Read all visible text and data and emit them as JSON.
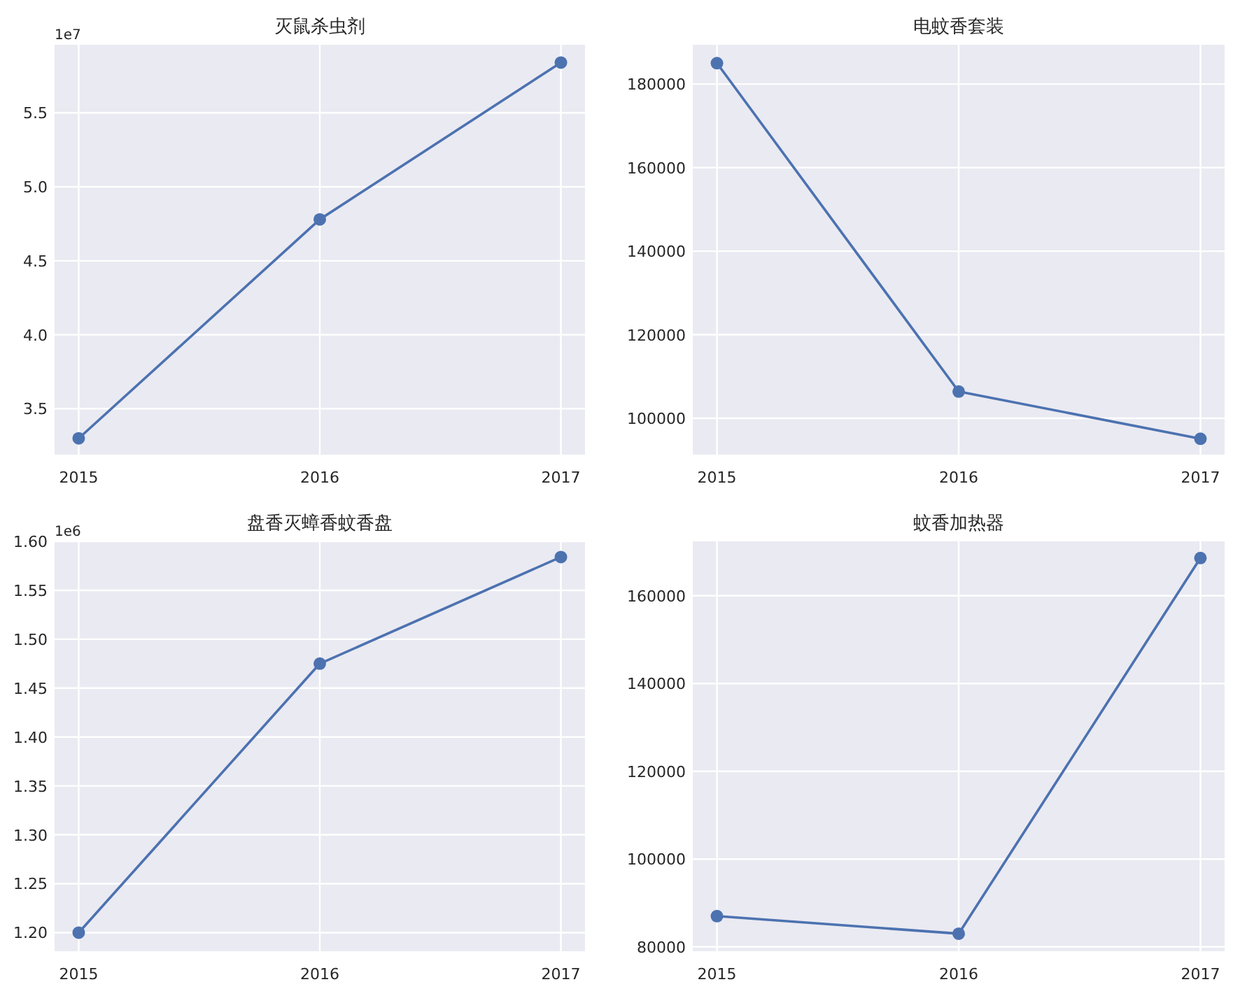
{
  "chart_data": [
    {
      "type": "line",
      "title": "灭鼠杀虫剂",
      "x": [
        2015,
        2016,
        2017
      ],
      "xlim": [
        2014.9,
        2017.1
      ],
      "xticks": [
        2015,
        2016,
        2017
      ],
      "ylim": [
        3.19,
        5.96
      ],
      "yticks": [
        3.5,
        {
          "value": 4,
          "label": "4.0"
        },
        4.5,
        {
          "value": 5,
          "label": "5.0"
        },
        5.5
      ],
      "annotations": [
        "1e7"
      ],
      "grid": true,
      "marker": "circle",
      "series": [
        {
          "color": "#4c72b0",
          "values": [
            3.3,
            4.78,
            5.84
          ]
        }
      ]
    },
    {
      "type": "line",
      "title": "电蚊香套装",
      "x": [
        2015,
        2016,
        2017
      ],
      "xlim": [
        2014.9,
        2017.1
      ],
      "xticks": [
        2015,
        2016,
        2017
      ],
      "ylim": [
        91300,
        189400
      ],
      "yticks": [
        100000,
        120000,
        140000,
        160000,
        180000
      ],
      "grid": true,
      "marker": "circle",
      "series": [
        {
          "color": "#4c72b0",
          "values": [
            185000,
            106400,
            95100
          ]
        }
      ]
    },
    {
      "type": "line",
      "title": "盘香灭蟑香蚊香盘",
      "x": [
        2015,
        2016,
        2017
      ],
      "xlim": [
        2014.9,
        2017.1
      ],
      "xticks": [
        2015,
        2016,
        2017
      ],
      "ylim": [
        1.181,
        1.6
      ],
      "yticks": [
        {
          "value": 1.2,
          "label": "1.20"
        },
        1.25,
        {
          "value": 1.3,
          "label": "1.30"
        },
        1.35,
        {
          "value": 1.4,
          "label": "1.40"
        },
        1.45,
        {
          "value": 1.5,
          "label": "1.50"
        },
        1.55,
        {
          "value": 1.6,
          "label": "1.60"
        }
      ],
      "annotations": [
        "1e6"
      ],
      "grid": true,
      "marker": "circle",
      "series": [
        {
          "color": "#4c72b0",
          "values": [
            1.2,
            1.475,
            1.584
          ]
        }
      ]
    },
    {
      "type": "line",
      "title": "蚊香加热器",
      "x": [
        2015,
        2016,
        2017
      ],
      "xlim": [
        2014.9,
        2017.1
      ],
      "xticks": [
        2015,
        2016,
        2017
      ],
      "ylim": [
        79000,
        172400
      ],
      "yticks": [
        80000,
        100000,
        120000,
        140000,
        160000
      ],
      "grid": true,
      "marker": "circle",
      "series": [
        {
          "color": "#4c72b0",
          "values": [
            87000,
            83000,
            168600
          ]
        }
      ]
    }
  ]
}
